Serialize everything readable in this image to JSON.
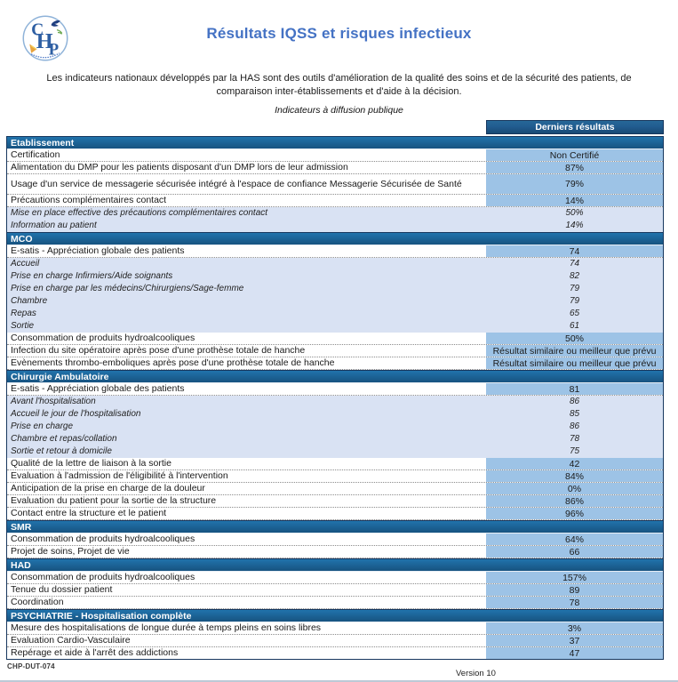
{
  "page": {
    "title": "Résultats IQSS et risques infectieux",
    "intro": "Les indicateurs nationaux développés par la HAS sont des outils d'amélioration de la qualité des soins et de la sécurité des patients, de comparaison inter-établissements et d'aide à la décision.",
    "subtitle": "Indicateurs à diffusion publique",
    "doc_ref": "CHP-DUT-074",
    "version": "Version 10",
    "logo_letters": "CHP"
  },
  "colors": {
    "title_blue": "#4472C4",
    "section_banner_blue": "#1D6199",
    "results_header_blue": "#215C90",
    "value_cell_blue": "#9DC3E6",
    "subrow_blue": "#D9E2F3",
    "table_border_navy": "#17375E"
  },
  "table": {
    "results_header": "Derniers résultats",
    "rows": [
      {
        "type": "section",
        "label": "Etablissement"
      },
      {
        "type": "main",
        "label": "Certification",
        "value": "Non Certifié"
      },
      {
        "type": "main",
        "label": "Alimentation du DMP pour les patients disposant d'un DMP lors de leur admission",
        "value": "87%"
      },
      {
        "type": "main",
        "label": "Usage d'un service de messagerie sécurisée intégré à l'espace de confiance Messagerie Sécurisée de Santé",
        "value": "79%"
      },
      {
        "type": "main",
        "label": "Précautions complémentaires contact",
        "value": "14%"
      },
      {
        "type": "sub",
        "label": "Mise en place effective des précautions complémentaires contact",
        "value": "50%"
      },
      {
        "type": "sub",
        "label": "Information au patient",
        "value": "14%"
      },
      {
        "type": "section",
        "label": "MCO"
      },
      {
        "type": "main",
        "label": "E-satis - Appréciation globale des patients",
        "value": "74"
      },
      {
        "type": "sub",
        "label": "Accueil",
        "value": "74"
      },
      {
        "type": "sub",
        "label": "Prise en charge Infirmiers/Aide soignants",
        "value": "82"
      },
      {
        "type": "sub",
        "label": "Prise en charge par les médecins/Chirurgiens/Sage-femme",
        "value": "79"
      },
      {
        "type": "sub",
        "label": "Chambre",
        "value": "79"
      },
      {
        "type": "sub",
        "label": "Repas",
        "value": "65"
      },
      {
        "type": "sub",
        "label": "Sortie",
        "value": "61"
      },
      {
        "type": "main",
        "label": "Consommation de produits hydroalcooliques",
        "value": "50%"
      },
      {
        "type": "main",
        "label": "Infection du site opératoire après pose d'une prothèse totale de hanche",
        "value": "Résultat similaire ou meilleur que prévu"
      },
      {
        "type": "main",
        "label": "Evènements thrombo-emboliques après pose d'une prothèse totale de hanche",
        "value": "Résultat similaire ou meilleur que prévu"
      },
      {
        "type": "section",
        "label": "Chirurgie Ambulatoire"
      },
      {
        "type": "main",
        "label": "E-satis - Appréciation globale des patients",
        "value": "81"
      },
      {
        "type": "sub",
        "label": "Avant l'hospitalisation",
        "value": "86"
      },
      {
        "type": "sub",
        "label": "Accueil le jour de l'hospitalisation",
        "value": "85"
      },
      {
        "type": "sub",
        "label": "Prise en charge",
        "value": "86"
      },
      {
        "type": "sub",
        "label": "Chambre et repas/collation",
        "value": "78"
      },
      {
        "type": "sub",
        "label": "Sortie et retour à domicile",
        "value": "75"
      },
      {
        "type": "main",
        "label": "Qualité de la lettre de liaison à la sortie",
        "value": "42"
      },
      {
        "type": "main",
        "label": "Evaluation à l'admission de l'éligibilité à l'intervention",
        "value": "84%"
      },
      {
        "type": "main",
        "label": "Anticipation de la prise en charge de la douleur",
        "value": "0%"
      },
      {
        "type": "main",
        "label": "Evaluation du patient pour la sortie de la structure",
        "value": "86%"
      },
      {
        "type": "main",
        "label": "Contact entre la structure et le patient",
        "value": "96%"
      },
      {
        "type": "section",
        "label": "SMR"
      },
      {
        "type": "main",
        "label": "Consommation de produits hydroalcooliques",
        "value": "64%"
      },
      {
        "type": "main",
        "label": "Projet de soins, Projet de vie",
        "value": "66"
      },
      {
        "type": "section",
        "label": "HAD"
      },
      {
        "type": "main",
        "label": "Consommation de produits hydroalcooliques",
        "value": "157%"
      },
      {
        "type": "main",
        "label": "Tenue du dossier patient",
        "value": "89"
      },
      {
        "type": "main",
        "label": "Coordination",
        "value": "78"
      },
      {
        "type": "section",
        "label": "PSYCHIATRIE - Hospitalisation complète"
      },
      {
        "type": "main",
        "label": "Mesure des hospitalisations de longue durée à temps pleins en soins libres",
        "value": "3%"
      },
      {
        "type": "main",
        "label": "Evaluation Cardio-Vasculaire",
        "value": "37"
      },
      {
        "type": "main",
        "label": "Repérage et aide à l'arrêt des addictions",
        "value": "47"
      }
    ]
  }
}
